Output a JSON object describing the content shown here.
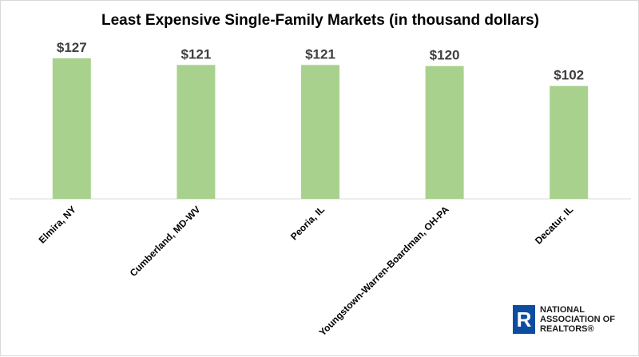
{
  "chart_data": {
    "type": "bar",
    "title": "Least Expensive Single-Family Markets (in thousand dollars)",
    "categories": [
      "Elmira, NY",
      "Cumberland, MD-WV",
      "Peoria, IL",
      "Youngstown-Warren-Boardman, OH-PA",
      "Decatur, IL"
    ],
    "values": [
      127,
      121,
      121,
      120,
      102
    ],
    "value_labels": [
      "$127",
      "$121",
      "$121",
      "$120",
      "$102"
    ],
    "xlabel": "",
    "ylabel": "",
    "ylim": [
      0,
      140
    ],
    "grid": false,
    "legend": "none",
    "bar_color": "#a9d18e"
  },
  "logo": {
    "mark": "R",
    "lines": [
      "NATIONAL",
      "ASSOCIATION OF",
      "REALTORS®"
    ]
  }
}
